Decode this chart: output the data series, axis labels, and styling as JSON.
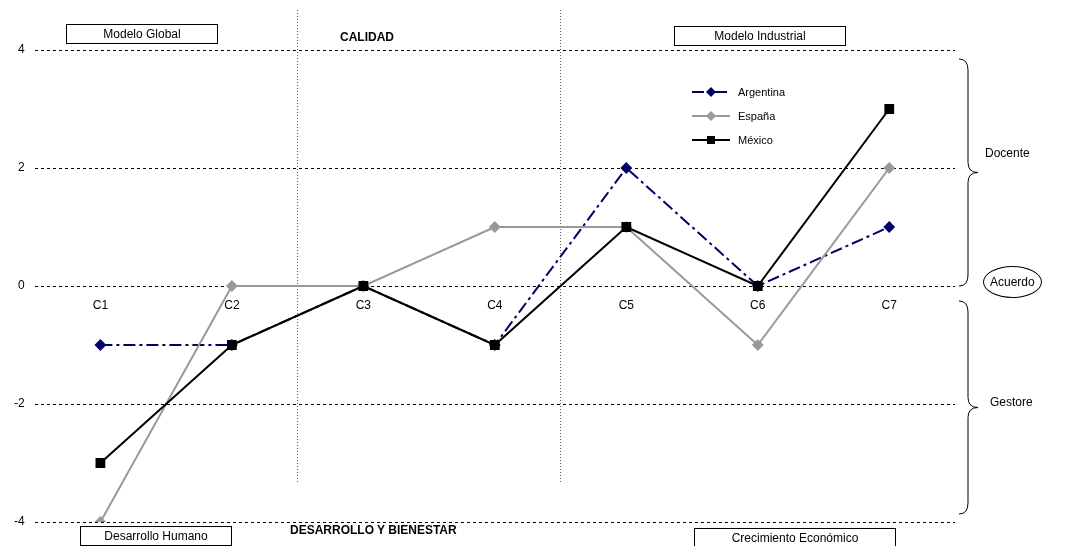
{
  "chart_data": {
    "type": "line",
    "categories": [
      "C1",
      "C2",
      "C3",
      "C4",
      "C5",
      "C6",
      "C7"
    ],
    "series": [
      {
        "name": "Argentina",
        "color": "#000066",
        "values": [
          -1,
          -1,
          0,
          -1,
          2,
          0,
          1
        ],
        "marker": "diamond",
        "line_style": "dashed"
      },
      {
        "name": "España",
        "color": "#999999",
        "values": [
          -4,
          0,
          0,
          1,
          1,
          -1,
          2
        ],
        "marker": "diamond",
        "line_style": "solid"
      },
      {
        "name": "México",
        "color": "#000000",
        "values": [
          -3,
          -1,
          0,
          -1,
          1,
          0,
          3
        ],
        "marker": "square",
        "line_style": "solid"
      }
    ],
    "ylim": [
      -4,
      4
    ],
    "yticks": [
      -4,
      -2,
      0,
      2,
      4
    ],
    "grid": "y",
    "legend": "top right",
    "annotations": [
      "Modelo Global",
      "CALIDAD",
      "Modelo Industrial",
      "Desarrollo Humano",
      "DESARROLLO Y BIENESTAR",
      "Crecimiento Económico",
      "Docente",
      "Acuerdo",
      "Gestore"
    ]
  }
}
